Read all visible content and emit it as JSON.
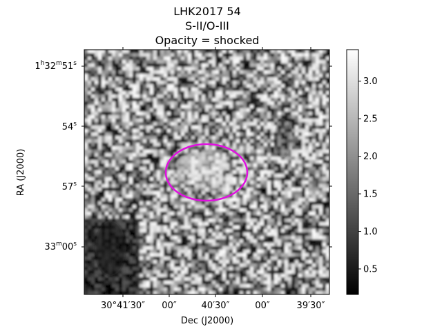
{
  "title": {
    "line1": "LHK2017 54",
    "line2": "S-II/O-III",
    "line3": "Opacity = shocked"
  },
  "image": {
    "description_kind": "grayscale astronomical emission-line ratio map",
    "colormap": "gray",
    "ellipse_color": "#e010e0",
    "seed": 54
  },
  "axes": {
    "xlabel": "Dec (J2000)",
    "ylabel": "RA (J2000)",
    "xticks": [
      "30°41′30″",
      "00″",
      "40′30″",
      "00″",
      "39′30″"
    ],
    "yticks": [
      {
        "main": "1",
        "sup1": "h",
        "mid": "32",
        "sup2": "m",
        "end": "51",
        "sup3": "s"
      },
      {
        "main": "54",
        "sup1": "s"
      },
      {
        "main": "57",
        "sup1": "s"
      },
      {
        "main": "33",
        "sup1": "m",
        "mid": "00",
        "sup2": "s"
      }
    ]
  },
  "colorbar": {
    "ticks": [
      "0.5",
      "1.0",
      "1.5",
      "2.0",
      "2.5",
      "3.0"
    ],
    "values": [
      0.5,
      1.0,
      1.5,
      2.0,
      2.5,
      3.0
    ],
    "vmin": 0.16,
    "vmax": 3.42
  }
}
